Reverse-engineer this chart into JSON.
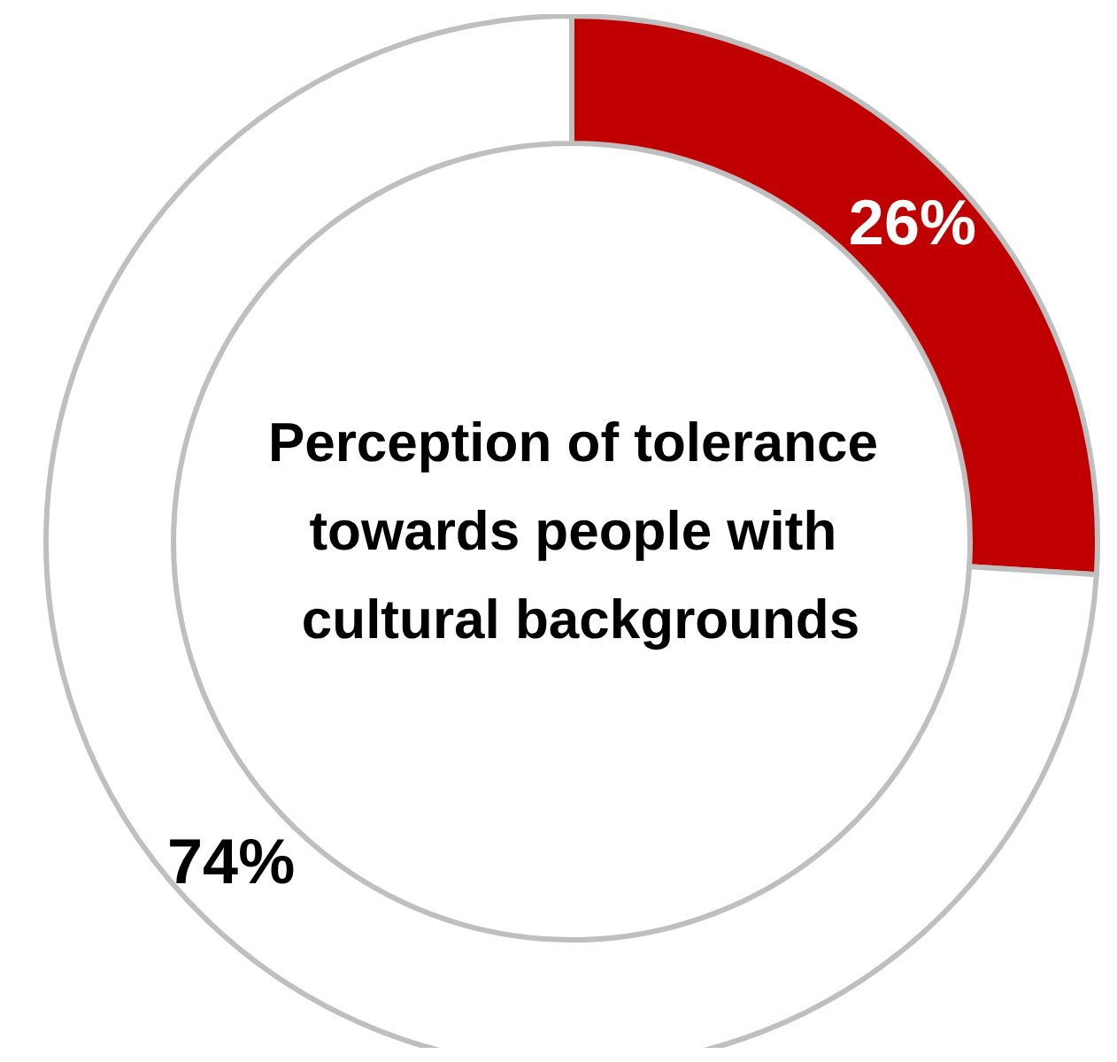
{
  "chart_data": {
    "type": "donut",
    "title": "Perception of tolerance towards people with cultural backgrounds",
    "categories": [
      null,
      null
    ],
    "values": [
      26,
      74
    ],
    "colors": [
      "#c00000",
      "#ffffff"
    ],
    "value_labels": [
      "26%",
      "74%"
    ]
  }
}
